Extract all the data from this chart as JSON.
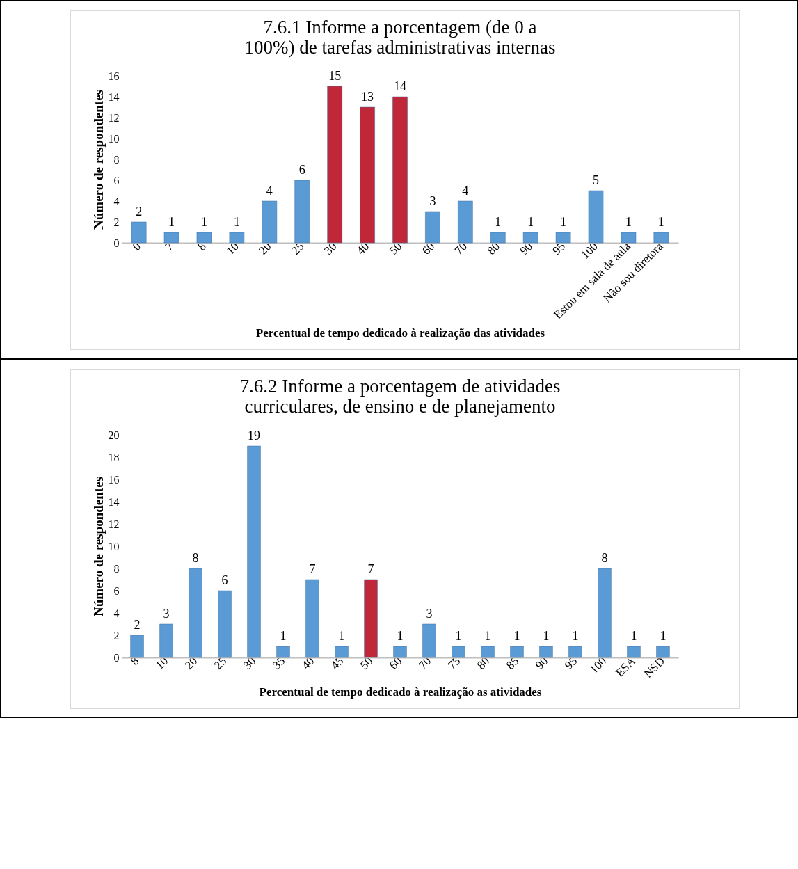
{
  "chart_data": [
    {
      "type": "bar",
      "title": "7.6.1 Informe a porcentagem (de 0 a 100%) de tarefas administrativas internas",
      "xlabel": "Percentual de tempo dedicado à realização das atividades",
      "ylabel": "Número de respondentes",
      "categories": [
        "0",
        "7",
        "8",
        "10",
        "20",
        "25",
        "30",
        "40",
        "50",
        "60",
        "70",
        "80",
        "90",
        "95",
        "100",
        "Estou em sala de aula",
        "Não sou diretora"
      ],
      "values": [
        2,
        1,
        1,
        1,
        4,
        6,
        15,
        13,
        14,
        3,
        4,
        1,
        1,
        1,
        5,
        1,
        1
      ],
      "colors": [
        "#5b9bd5",
        "#5b9bd5",
        "#5b9bd5",
        "#5b9bd5",
        "#5b9bd5",
        "#5b9bd5",
        "#c0283a",
        "#c0283a",
        "#c0283a",
        "#5b9bd5",
        "#5b9bd5",
        "#5b9bd5",
        "#5b9bd5",
        "#5b9bd5",
        "#5b9bd5",
        "#5b9bd5",
        "#5b9bd5"
      ],
      "ylim": [
        0,
        16
      ],
      "yticks": [
        0,
        2,
        4,
        6,
        8,
        10,
        12,
        14,
        16
      ],
      "data_labels": true
    },
    {
      "type": "bar",
      "title": "7.6.2 Informe a porcentagem de atividades curriculares, de ensino e de planejamento",
      "xlabel": "Percentual de tempo dedicado à realização as atividades",
      "ylabel": "Número de respondentes",
      "categories": [
        "8",
        "10",
        "20",
        "25",
        "30",
        "35",
        "40",
        "45",
        "50",
        "60",
        "70",
        "75",
        "80",
        "85",
        "90",
        "95",
        "100",
        "ESA",
        "NSD"
      ],
      "values": [
        2,
        3,
        8,
        6,
        19,
        1,
        7,
        1,
        7,
        1,
        3,
        1,
        1,
        1,
        1,
        1,
        8,
        1,
        1
      ],
      "colors": [
        "#5b9bd5",
        "#5b9bd5",
        "#5b9bd5",
        "#5b9bd5",
        "#5b9bd5",
        "#5b9bd5",
        "#5b9bd5",
        "#5b9bd5",
        "#c0283a",
        "#5b9bd5",
        "#5b9bd5",
        "#5b9bd5",
        "#5b9bd5",
        "#5b9bd5",
        "#5b9bd5",
        "#5b9bd5",
        "#5b9bd5",
        "#5b9bd5",
        "#5b9bd5"
      ],
      "ylim": [
        0,
        20
      ],
      "yticks": [
        0,
        2,
        4,
        6,
        8,
        10,
        12,
        14,
        16,
        18,
        20
      ],
      "data_labels": true
    }
  ]
}
